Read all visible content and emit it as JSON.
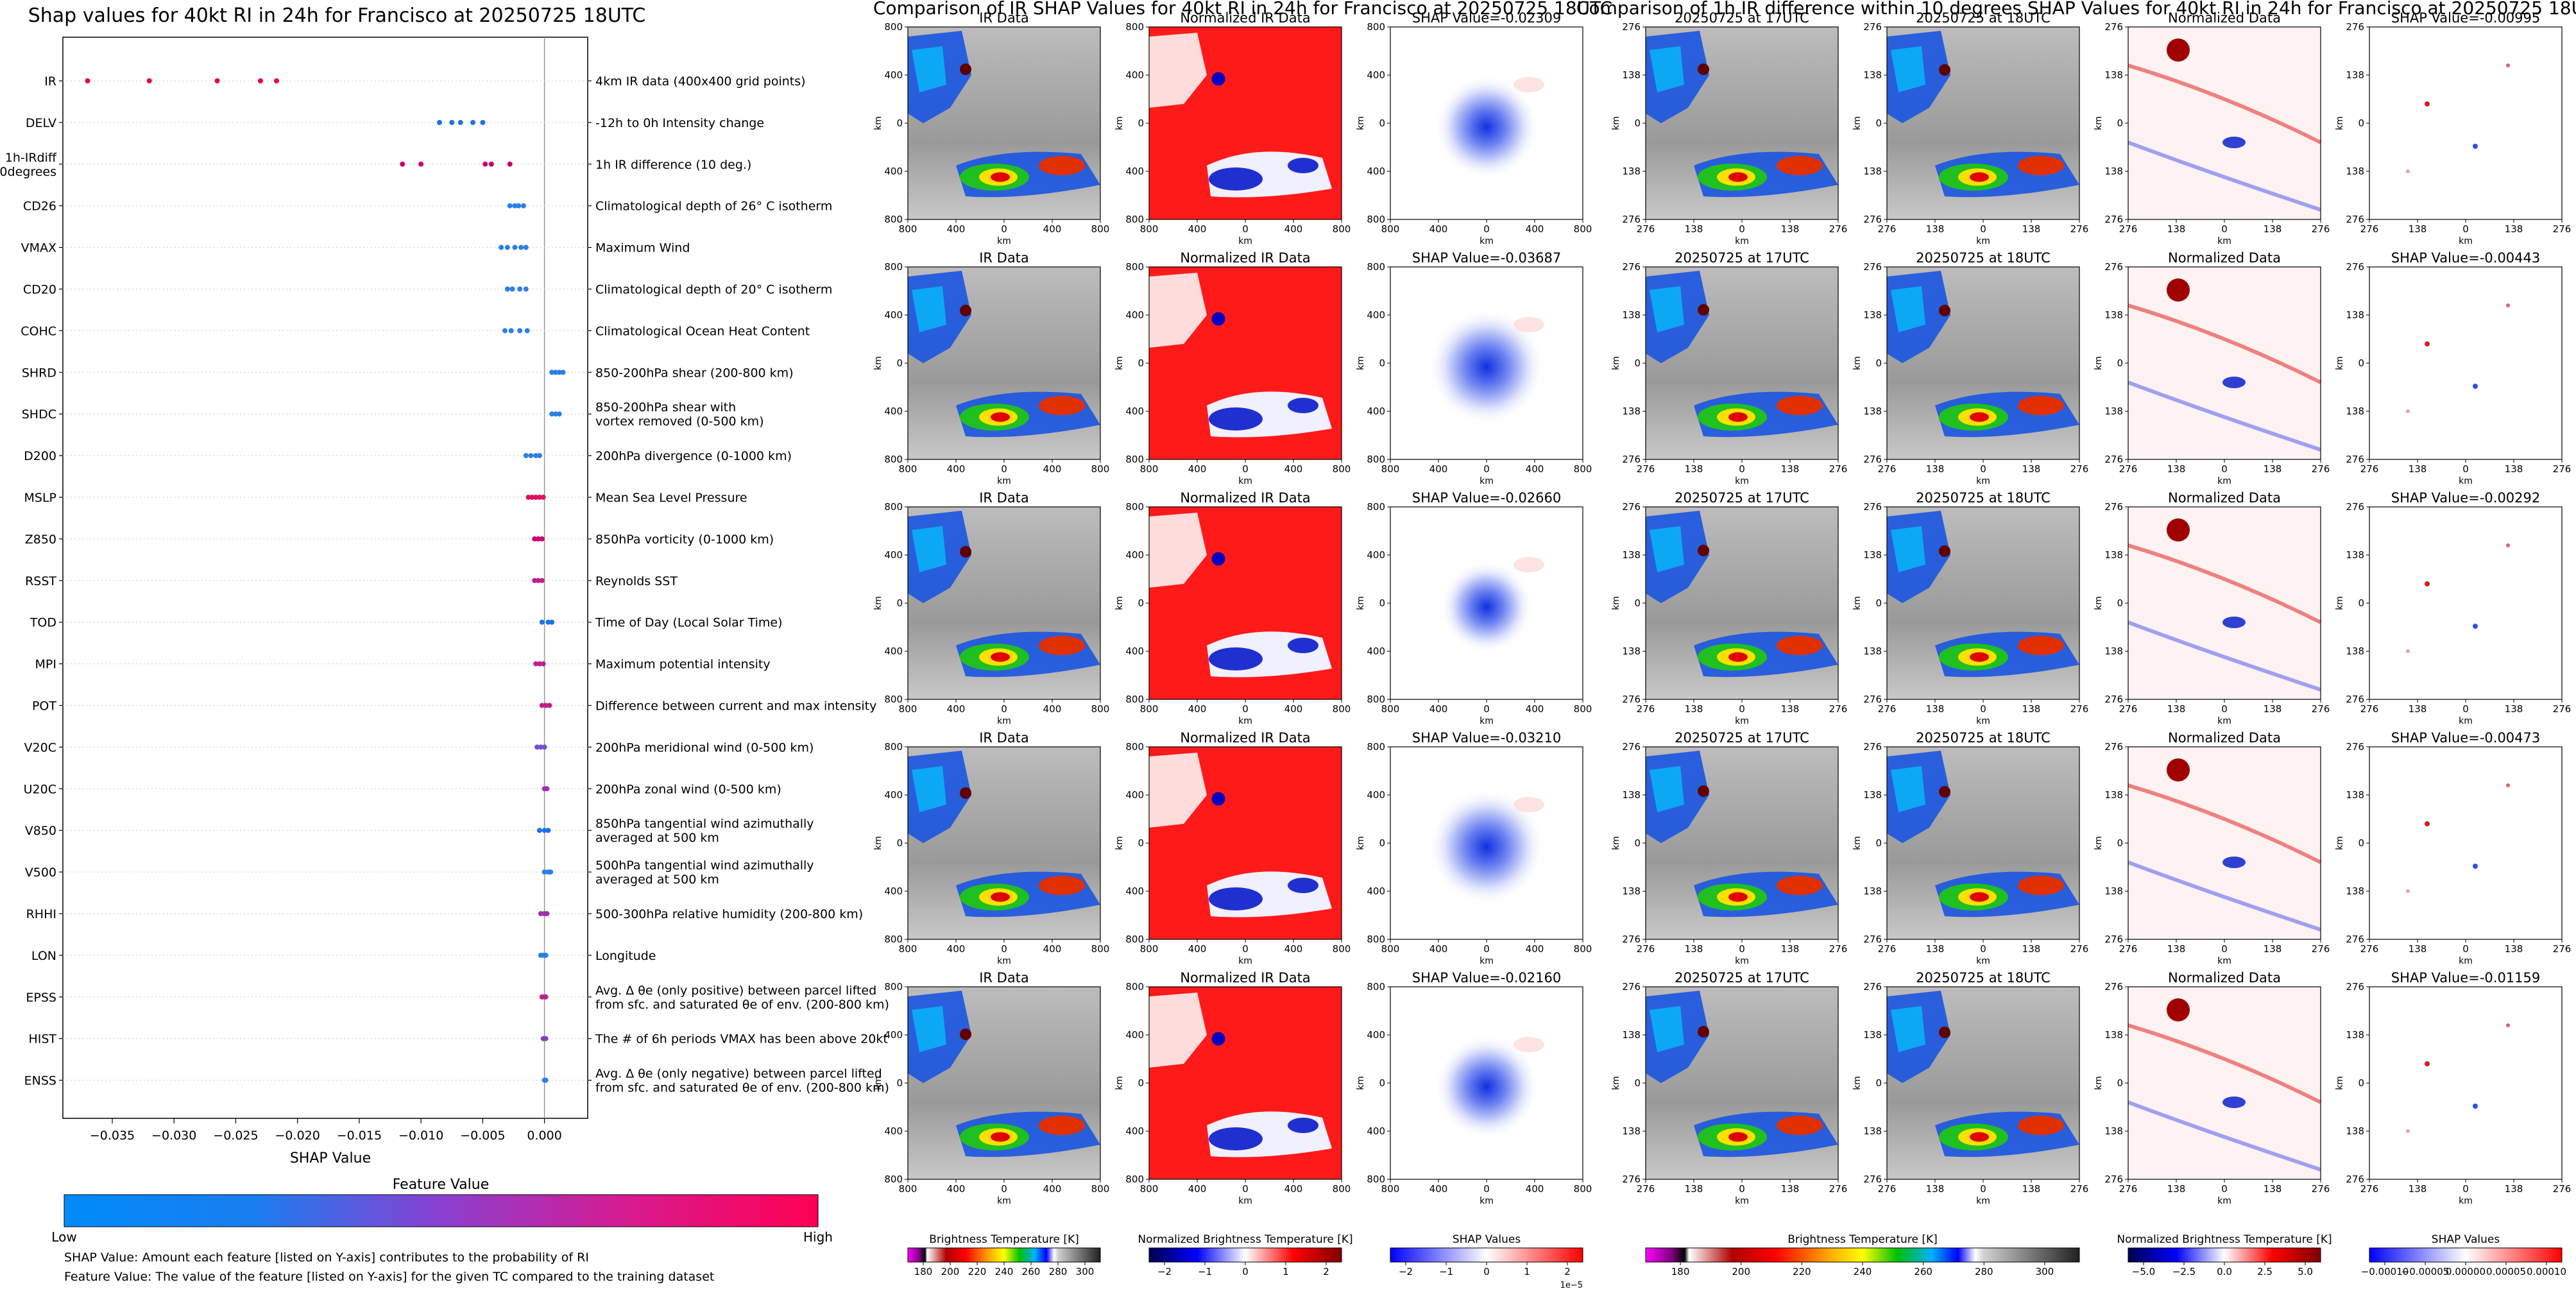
{
  "left_panel": {
    "title": "Shap values for 40kt RI in 24h for Francisco at 20250725 18UTC",
    "xlabel": "SHAP Value",
    "features": [
      {
        "name": "IR",
        "desc": [
          "4km IR data (400x400 grid points)"
        ],
        "color": "#e8004f",
        "shap": [
          -0.037,
          -0.032,
          -0.0265,
          -0.023,
          -0.0217
        ]
      },
      {
        "name": "DELV",
        "desc": [
          "-12h to 0h Intensity change"
        ],
        "color": "#1a73e8",
        "shap": [
          -0.0085,
          -0.0075,
          -0.0068,
          -0.0058,
          -0.005
        ]
      },
      {
        "name": "1h-IRdiff\n10degrees",
        "desc": [
          "1h IR difference (10 deg.)"
        ],
        "color": "#c8006a",
        "shap": [
          -0.0115,
          -0.01,
          -0.0048,
          -0.0043,
          -0.0028
        ]
      },
      {
        "name": "CD26",
        "desc": [
          "Climatological depth of 26° C isotherm"
        ],
        "color": "#2a7fe8",
        "shap": [
          -0.0028,
          -0.0024,
          -0.0021,
          -0.0017
        ]
      },
      {
        "name": "VMAX",
        "desc": [
          "Maximum Wind"
        ],
        "color": "#2a7fe8",
        "shap": [
          -0.0035,
          -0.003,
          -0.0024,
          -0.0019,
          -0.0015
        ]
      },
      {
        "name": "CD20",
        "desc": [
          "Climatological depth of 20° C isotherm"
        ],
        "color": "#2a7fe8",
        "shap": [
          -0.003,
          -0.0026,
          -0.002,
          -0.0015
        ]
      },
      {
        "name": "COHC",
        "desc": [
          "Climatological Ocean Heat Content"
        ],
        "color": "#2a7fe8",
        "shap": [
          -0.0032,
          -0.0027,
          -0.002,
          -0.0014
        ]
      },
      {
        "name": "SHRD",
        "desc": [
          "850-200hPa shear (200-800 km)"
        ],
        "color": "#2a7fe8",
        "shap": [
          0.0006,
          0.0009,
          0.0012,
          0.0015
        ]
      },
      {
        "name": "SHDC",
        "desc": [
          "850-200hPa shear with",
          "vortex removed (0-500 km)"
        ],
        "color": "#2a7fe8",
        "shap": [
          0.0006,
          0.0009,
          0.0012
        ]
      },
      {
        "name": "D200",
        "desc": [
          "200hPa divergence (0-1000 km)"
        ],
        "color": "#2a7fe8",
        "shap": [
          -0.0015,
          -0.0011,
          -0.0007,
          -0.0004
        ]
      },
      {
        "name": "MSLP",
        "desc": [
          "Mean Sea Level Pressure"
        ],
        "color": "#e0105a",
        "shap": [
          -0.0013,
          -0.001,
          -0.0007,
          -0.0004,
          -0.0001
        ]
      },
      {
        "name": "Z850",
        "desc": [
          "850hPa vorticity (0-1000 km)"
        ],
        "color": "#d0006a",
        "shap": [
          -0.0008,
          -0.0005,
          -0.0002
        ]
      },
      {
        "name": "RSST",
        "desc": [
          "Reynolds SST"
        ],
        "color": "#c0208c",
        "shap": [
          -0.0008,
          -0.0005,
          -0.0002
        ]
      },
      {
        "name": "TOD",
        "desc": [
          "Time of Day (Local Solar Time)"
        ],
        "color": "#1a73e8",
        "shap": [
          -0.0002,
          0.0003,
          0.0006
        ]
      },
      {
        "name": "MPI",
        "desc": [
          "Maximum potential intensity"
        ],
        "color": "#c0208c",
        "shap": [
          -0.0007,
          -0.0004,
          -0.0001
        ]
      },
      {
        "name": "POT",
        "desc": [
          "Difference between current and max intensity"
        ],
        "color": "#c0208c",
        "shap": [
          -0.0002,
          0.0001,
          0.0004
        ]
      },
      {
        "name": "V20C",
        "desc": [
          "200hPa meridional wind (0-500 km)"
        ],
        "color": "#7050d0",
        "shap": [
          -0.0006,
          -0.0003,
          0.0
        ]
      },
      {
        "name": "U20C",
        "desc": [
          "200hPa zonal wind (0-500 km)"
        ],
        "color": "#a030b0",
        "shap": [
          0.0,
          0.0002
        ]
      },
      {
        "name": "V850",
        "desc": [
          "850hPa tangential wind azimuthally",
          "averaged at 500 km"
        ],
        "color": "#1a73e8",
        "shap": [
          -0.0004,
          0.0,
          0.0003
        ]
      },
      {
        "name": "V500",
        "desc": [
          "500hPa tangential wind azimuthally",
          "averaged at 500 km"
        ],
        "color": "#2a7fe8",
        "shap": [
          0.0,
          0.0003,
          0.0005
        ]
      },
      {
        "name": "RHHI",
        "desc": [
          "500-300hPa relative humidity (200-800 km)"
        ],
        "color": "#a030b0",
        "shap": [
          -0.0003,
          0.0,
          0.0002
        ]
      },
      {
        "name": "LON",
        "desc": [
          "Longitude"
        ],
        "color": "#2a7fe8",
        "shap": [
          -0.0003,
          -0.0001,
          0.0001
        ]
      },
      {
        "name": "EPSS",
        "desc": [
          "Avg. Δ θe (only positive) between parcel lifted",
          "from sfc. and saturated θe of env. (200-800 km)"
        ],
        "color": "#c0208c",
        "shap": [
          -0.0002,
          0.0,
          0.0001
        ]
      },
      {
        "name": "HIST",
        "desc": [
          "The # of 6h periods VMAX has been above 20kt"
        ],
        "color": "#8040c0",
        "shap": [
          -0.0001,
          0.0001
        ]
      },
      {
        "name": "ENSS",
        "desc": [
          "Avg. Δ θe (only negative) between parcel lifted",
          "from sfc. and saturated θe of env. (200-800 km)"
        ],
        "color": "#2a7fe8",
        "shap": [
          0.0,
          0.0001
        ]
      }
    ],
    "colorbar_title": "Feature Value",
    "colorbar_low": "Low",
    "colorbar_high": "High",
    "footnote1": "SHAP Value: Amount each feature [listed on Y-axis] contributes to the probability of RI",
    "footnote2": "Feature Value: The value of the feature [listed on Y-axis] for the given TC compared to the training dataset"
  },
  "chart_data": {
    "type": "scatter",
    "title": "Shap values for 40kt RI in 24h for Francisco at 20250725 18UTC",
    "xlabel": "SHAP Value",
    "xlim": [
      -0.039,
      0.0035
    ],
    "xticks": [
      -0.035,
      -0.03,
      -0.025,
      -0.02,
      -0.015,
      -0.01,
      -0.005,
      0.0
    ],
    "categories": [
      "IR",
      "DELV",
      "1h-IRdiff 10degrees",
      "CD26",
      "VMAX",
      "CD20",
      "COHC",
      "SHRD",
      "SHDC",
      "D200",
      "MSLP",
      "Z850",
      "RSST",
      "TOD",
      "MPI",
      "POT",
      "V20C",
      "U20C",
      "V850",
      "V500",
      "RHHI",
      "LON",
      "EPSS",
      "HIST",
      "ENSS"
    ],
    "legend": "colorbar bottom"
  },
  "middle_group": {
    "suptitle": "Comparison of IR SHAP Values for 40kt RI in 24h for Francisco at 20250725 18UTC",
    "col_titles": [
      "IR Data",
      "Normalized IR Data"
    ],
    "shap_titles": [
      "SHAP Value=-0.02309",
      "SHAP Value=-0.03687",
      "SHAP Value=-0.02660",
      "SHAP Value=-0.03210",
      "SHAP Value=-0.02160"
    ],
    "yticks": [
      "800",
      "400",
      "0",
      "400",
      "800"
    ],
    "xticks": [
      "800",
      "400",
      "0",
      "400",
      "800"
    ],
    "axis_label": "km",
    "cbars": [
      {
        "label": "Brightness Temperature [K]",
        "ticks": [
          "180",
          "200",
          "220",
          "240",
          "260",
          "280",
          "300"
        ]
      },
      {
        "label": "Normalized Brightness Temperature [K]",
        "ticks": [
          "−2",
          "−1",
          "0",
          "1",
          "2"
        ]
      },
      {
        "label": "SHAP Values",
        "ticks": [
          "−2",
          "−1",
          "0",
          "1",
          "2"
        ],
        "exponent": "1e−5"
      }
    ]
  },
  "right_group": {
    "suptitle": "Comparison of 1h IR difference within 10 degrees SHAP Values for 40kt RI in 24h for Francisco at 20250725 18UTC",
    "col_titles": [
      "20250725 at 17UTC",
      "20250725 at 18UTC",
      "Normalized Data"
    ],
    "shap_titles": [
      "SHAP Value=-0.00995",
      "SHAP Value=-0.00443",
      "SHAP Value=-0.00292",
      "SHAP Value=-0.00473",
      "SHAP Value=-0.01159"
    ],
    "yticks": [
      "276",
      "138",
      "0",
      "138",
      "276"
    ],
    "xticks": [
      "276",
      "138",
      "0",
      "138",
      "276"
    ],
    "axis_label": "km",
    "cbars": [
      {
        "label": "Brightness Temperature [K]",
        "ticks": [
          "180",
          "200",
          "220",
          "240",
          "260",
          "280",
          "300"
        ]
      },
      {
        "label": "Normalized Brightness Temperature [K]",
        "ticks": [
          "−5.0",
          "−2.5",
          "0.0",
          "2.5",
          "5.0"
        ]
      },
      {
        "label": "SHAP Values",
        "ticks": [
          "−0.00010",
          "−0.00005",
          "0.00000",
          "0.00005",
          "0.00010"
        ]
      }
    ]
  }
}
